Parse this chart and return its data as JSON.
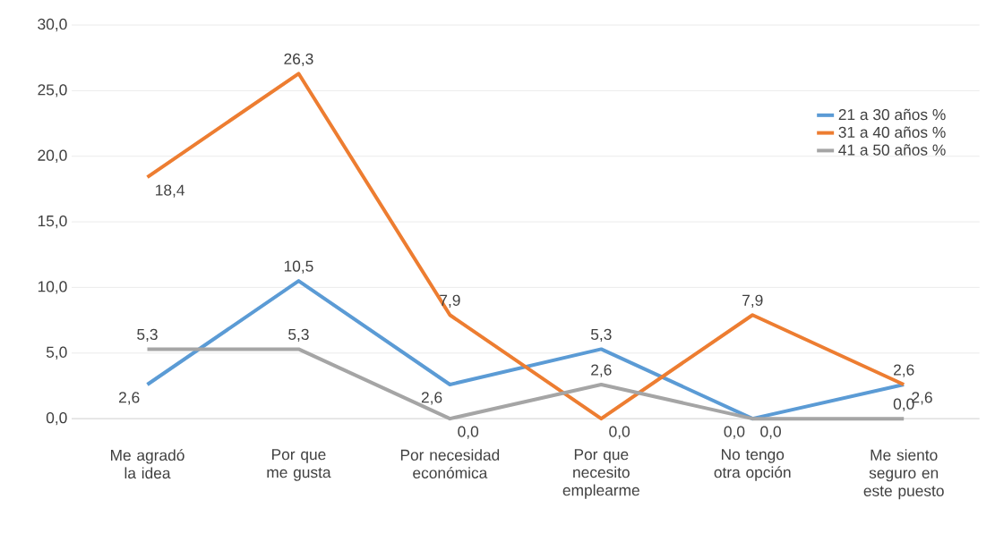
{
  "chart_data": {
    "type": "line",
    "categories": [
      "Me agradó la idea",
      "Por que me gusta",
      "Por necesidad económica",
      "Por que necesito emplearme",
      "No tengo otra opción",
      "Me siento seguro en este puesto"
    ],
    "series": [
      {
        "name": "21 a 30 años  %",
        "color": "#5b9bd5",
        "values": [
          2.6,
          10.5,
          2.6,
          5.3,
          0.0,
          2.6
        ],
        "value_labels": [
          "2,6",
          "10,5",
          "2,6",
          "5,3",
          "0,0",
          "2,6"
        ]
      },
      {
        "name": "31 a 40 años  %",
        "color": "#ed7d31",
        "values": [
          18.4,
          26.3,
          7.9,
          0.0,
          7.9,
          2.6
        ],
        "value_labels": [
          "18,4",
          "26,3",
          "7,9",
          "0,0",
          "7,9",
          "2,6"
        ]
      },
      {
        "name": "41 a 50 años  %",
        "color": "#a5a5a5",
        "values": [
          5.3,
          5.3,
          0.0,
          2.6,
          0.0,
          0.0
        ],
        "value_labels": [
          "5,3",
          "5,3",
          "0,0",
          "2,6",
          "0,0",
          "0,0"
        ]
      }
    ],
    "ylim": [
      0,
      30
    ],
    "yticks": [
      {
        "value": 0,
        "label": "0,0"
      },
      {
        "value": 5,
        "label": "5,0"
      },
      {
        "value": 10,
        "label": "10,0"
      },
      {
        "value": 15,
        "label": "15,0"
      },
      {
        "value": 20,
        "label": "20,0"
      },
      {
        "value": 25,
        "label": "25,0"
      },
      {
        "value": 30,
        "label": "30,0"
      }
    ],
    "grid": "y",
    "legend": "top right",
    "marker": "none",
    "line_style": "solid"
  }
}
